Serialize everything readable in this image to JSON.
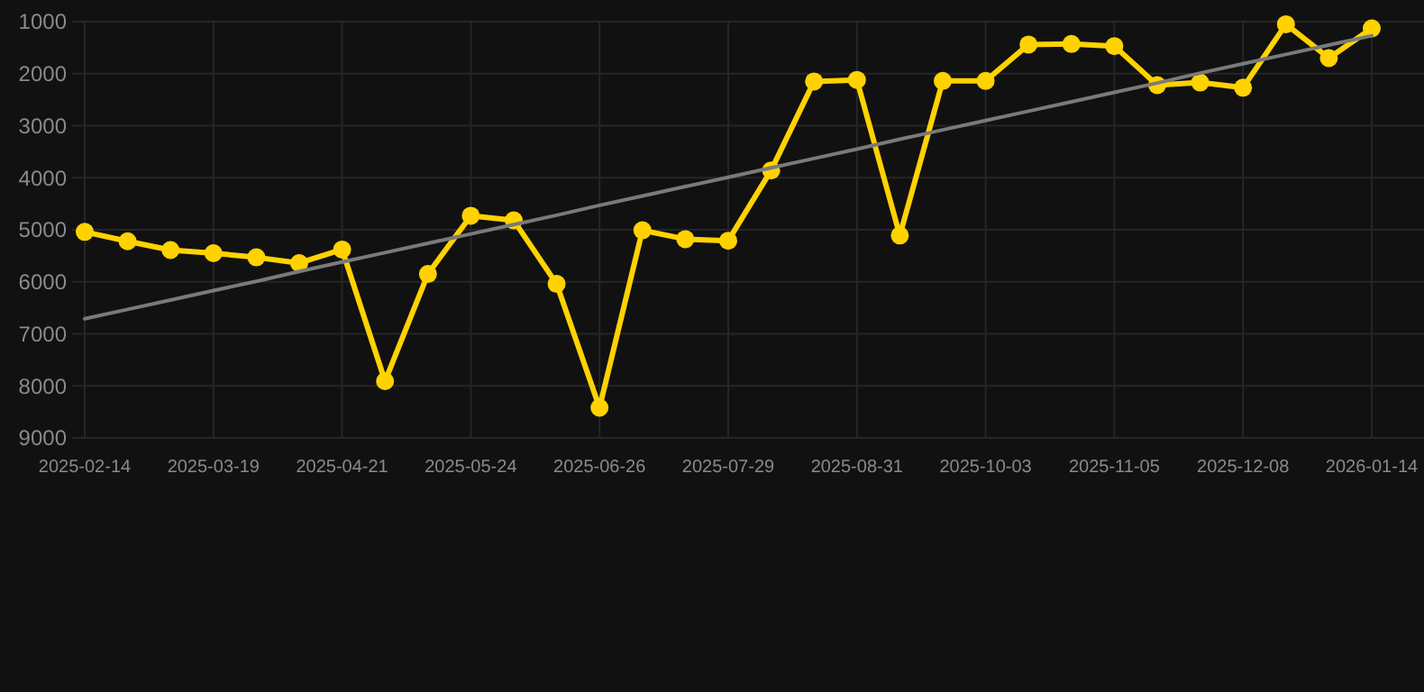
{
  "chart_data": {
    "type": "line",
    "categories": [
      "2025-02-14",
      null,
      null,
      "2025-03-19",
      null,
      null,
      "2025-04-21",
      null,
      null,
      "2025-05-24",
      null,
      null,
      "2025-06-26",
      null,
      null,
      "2025-07-29",
      null,
      null,
      "2025-08-31",
      null,
      null,
      "2025-10-03",
      null,
      null,
      "2025-11-05",
      null,
      null,
      "2025-12-08",
      null,
      null,
      "2026-01-14"
    ],
    "series": [
      {
        "color": "#ffd200",
        "marker": "circle",
        "values": [
          5040,
          5220,
          5390,
          5450,
          5530,
          5640,
          5380,
          7910,
          5850,
          4730,
          4820,
          6040,
          8420,
          5010,
          5180,
          5210,
          3860,
          2150,
          2120,
          5110,
          2140,
          2140,
          1440,
          1430,
          1470,
          2220,
          2170,
          2270,
          1050,
          1700,
          1130
        ]
      },
      {
        "color": "#7a7a7a",
        "marker": "none",
        "values": [
          6710,
          6530,
          6350,
          6170,
          5990,
          5800,
          5620,
          5440,
          5260,
          5080,
          4900,
          4720,
          4530,
          4350,
          4170,
          3990,
          3810,
          3630,
          3450,
          3260,
          3080,
          2900,
          2720,
          2540,
          2360,
          2180,
          1990,
          1810,
          1630,
          1450,
          1270
        ]
      }
    ],
    "ylim": [
      9000,
      1000
    ],
    "yticks": [
      1000,
      2000,
      3000,
      4000,
      5000,
      6000,
      7000,
      8000,
      9000
    ],
    "grid": true,
    "line_style": "solid"
  }
}
